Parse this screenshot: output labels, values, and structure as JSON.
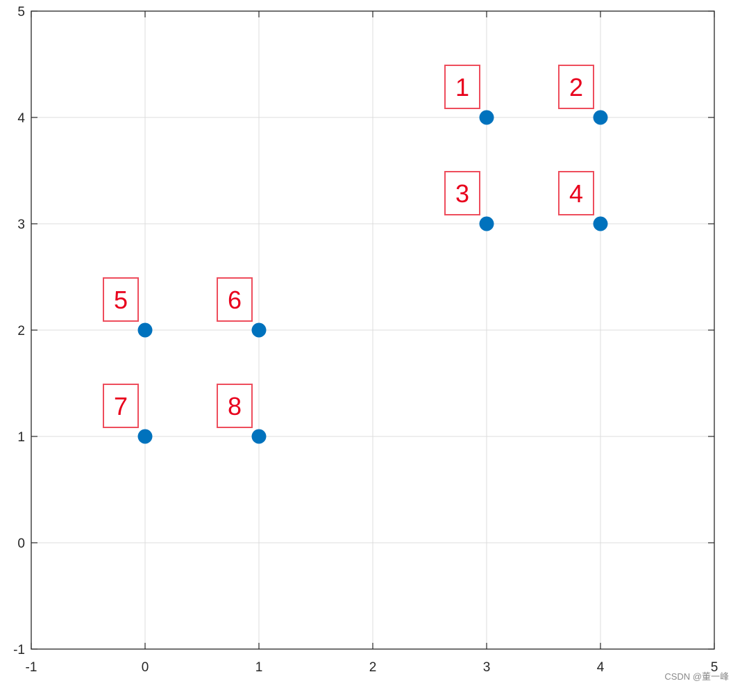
{
  "chart_data": {
    "type": "scatter",
    "xlim": [
      -1,
      5
    ],
    "ylim": [
      -1,
      5
    ],
    "x_ticks": [
      -1,
      0,
      1,
      2,
      3,
      4,
      5
    ],
    "y_ticks": [
      -1,
      0,
      1,
      2,
      3,
      4,
      5
    ],
    "grid": true,
    "marker_color": "#0072bd",
    "label_color": "#e8001c",
    "points": [
      {
        "x": 3,
        "y": 4,
        "label": "1"
      },
      {
        "x": 4,
        "y": 4,
        "label": "2"
      },
      {
        "x": 3,
        "y": 3,
        "label": "3"
      },
      {
        "x": 4,
        "y": 3,
        "label": "4"
      },
      {
        "x": 0,
        "y": 2,
        "label": "5"
      },
      {
        "x": 1,
        "y": 2,
        "label": "6"
      },
      {
        "x": 0,
        "y": 1,
        "label": "7"
      },
      {
        "x": 1,
        "y": 1,
        "label": "8"
      }
    ]
  },
  "watermark": "CSDN @董一峰"
}
